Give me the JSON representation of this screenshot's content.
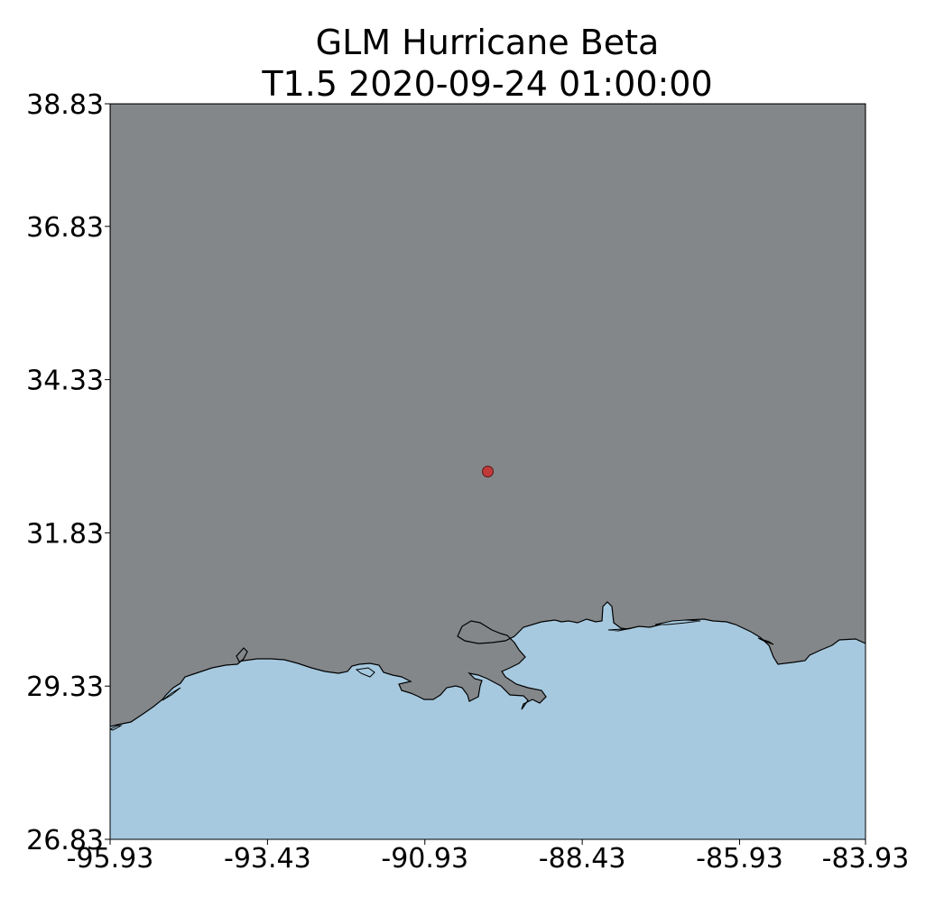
{
  "title": {
    "line1": "GLM Hurricane Beta",
    "line2": "T1.5 2020-09-24 01:00:00"
  },
  "map": {
    "extent": {
      "lon": [
        -95.93,
        -83.93
      ],
      "lat": [
        26.83,
        38.83
      ]
    },
    "x_ticks": [
      "-95.93",
      "-93.43",
      "-90.93",
      "-88.43",
      "-85.93",
      "-83.93"
    ],
    "x_tick_values": [
      -95.93,
      -93.43,
      -90.93,
      -88.43,
      -85.93,
      -83.93
    ],
    "y_ticks": [
      "38.83",
      "36.83",
      "34.33",
      "31.83",
      "29.33",
      "26.83"
    ],
    "y_tick_values": [
      38.83,
      36.83,
      34.33,
      31.83,
      29.33,
      26.83
    ],
    "colors": {
      "land": "#84878a",
      "water": "#a6c9df",
      "coastline": "#000000",
      "marker": "#c2393a",
      "marker_edge": "#5a1a1a"
    },
    "storm_center": {
      "lon": -89.93,
      "lat": 32.83
    }
  }
}
